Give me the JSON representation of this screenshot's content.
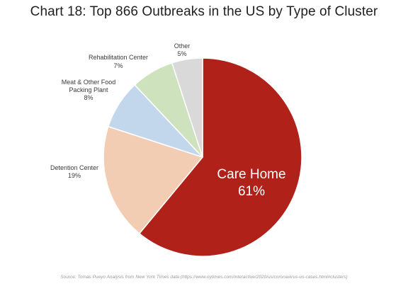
{
  "title": "Chart 18: Top 866 Outbreaks in the US by Type of Cluster",
  "source": "Source: Tomas Pueyo Analysis from New York Times data (https://www.nytimes.com/interactive/2020/us/coronavirus-us-cases.html#clusters)",
  "chart_data": {
    "type": "pie",
    "title": "Chart 18: Top 866 Outbreaks in the US by Type of Cluster",
    "slices": [
      {
        "key": "care-home",
        "label": "Care Home",
        "percent_label": "61%",
        "value": 61,
        "color": "#b0211a"
      },
      {
        "key": "detention-center",
        "label": "Detention Center",
        "percent_label": "19%",
        "value": 19,
        "color": "#f3cdb3"
      },
      {
        "key": "meat-packing",
        "label_lines": [
          "Meat & Other Food",
          "Packing Plant"
        ],
        "percent_label": "8%",
        "value": 8,
        "color": "#c3d7ec"
      },
      {
        "key": "rehabilitation-center",
        "label": "Rehabilitation Center",
        "percent_label": "7%",
        "value": 7,
        "color": "#cde2bd"
      },
      {
        "key": "other",
        "label": "Other",
        "percent_label": "5%",
        "value": 5,
        "color": "#d9d9d9"
      }
    ]
  }
}
